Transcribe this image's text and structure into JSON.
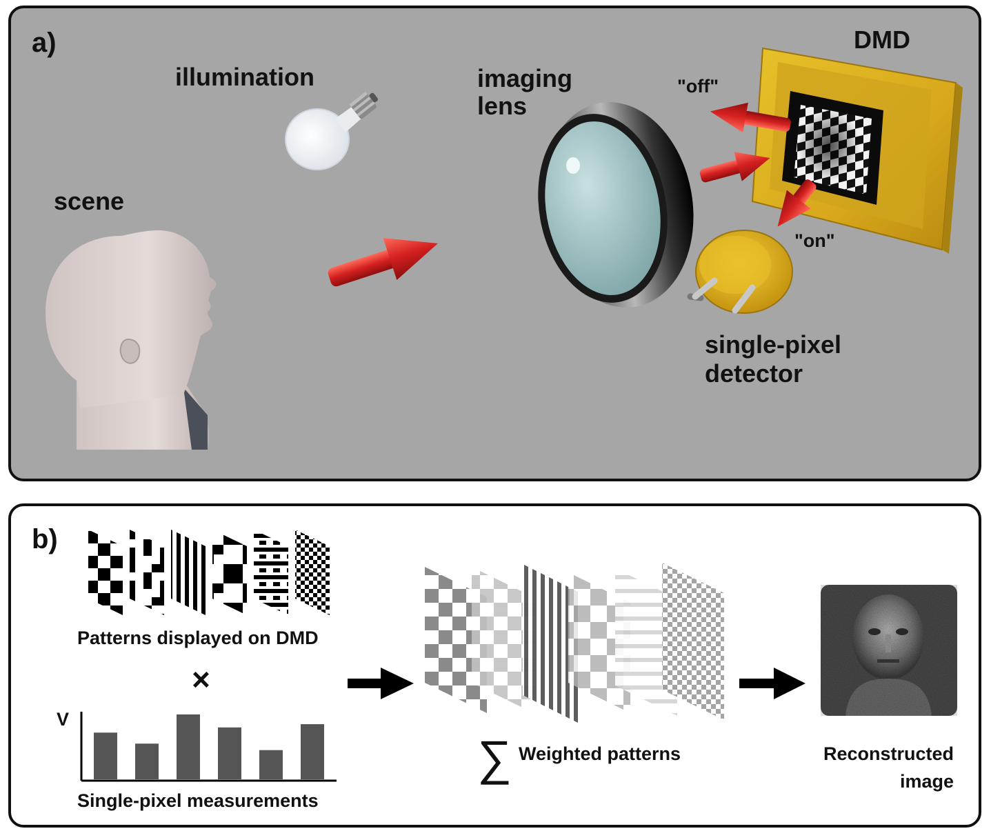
{
  "panel_a": {
    "label": "a)",
    "labels": {
      "illumination": "illumination",
      "scene": "scene",
      "imaging_lens_line1": "imaging",
      "imaging_lens_line2": "lens",
      "dmd": "DMD",
      "off": "\"off\"",
      "on": "\"on\"",
      "detector_line1": "single-pixel",
      "detector_line2": "detector"
    }
  },
  "panel_b": {
    "label": "b)",
    "patterns_caption": "Patterns displayed on DMD",
    "multiply_symbol": "×",
    "measurements_ylabel": "V",
    "measurements_caption": "Single-pixel measurements",
    "measurement_values": [
      0.72,
      0.55,
      1.0,
      0.8,
      0.45,
      0.85
    ],
    "sum_symbol": "∑",
    "weighted_caption": "Weighted patterns",
    "reconstructed_line1": "Reconstructed",
    "reconstructed_line2": "image"
  },
  "colors": {
    "panel_a_bg": "#a6a6a6",
    "arrow_red": "#d42020",
    "dmd_gold": "#e0b820",
    "bar_gray": "#555555"
  }
}
